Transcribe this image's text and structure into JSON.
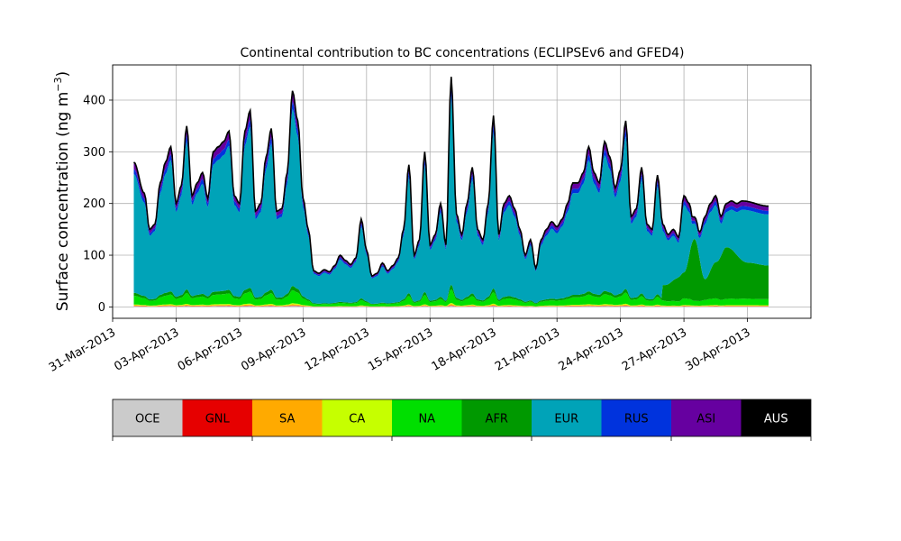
{
  "chart_data": {
    "type": "area",
    "stacked": true,
    "title": "Continental contribution to BC concentrations (ECLIPSEv6 and GFED4)",
    "ylabel_main": "Surface concentration (ng m",
    "ylabel_sup": "−3",
    "ylabel_close": ")",
    "xlabel": "",
    "x_start": "2013-04-01",
    "x_end": "2013-05-01",
    "xlim": [
      "2013-03-31",
      "2013-05-03"
    ],
    "ylim": [
      -22,
      468
    ],
    "yticks": [
      0,
      100,
      200,
      300,
      400
    ],
    "xticks": [
      "31-Mar-2013",
      "03-Apr-2013",
      "06-Apr-2013",
      "09-Apr-2013",
      "12-Apr-2013",
      "15-Apr-2013",
      "18-Apr-2013",
      "21-Apr-2013",
      "24-Apr-2013",
      "27-Apr-2013",
      "30-Apr-2013"
    ],
    "grid": true,
    "total_profile": [
      [
        "2013-04-01",
        280
      ],
      [
        "2013-04-01T12",
        220
      ],
      [
        "2013-04-01T18",
        150
      ],
      [
        "2013-04-02",
        160
      ],
      [
        "2013-04-02T06",
        240
      ],
      [
        "2013-04-02T12",
        280
      ],
      [
        "2013-04-02T18",
        310
      ],
      [
        "2013-04-03",
        200
      ],
      [
        "2013-04-03T06",
        235
      ],
      [
        "2013-04-03T12",
        350
      ],
      [
        "2013-04-03T18",
        215
      ],
      [
        "2013-04-04",
        240
      ],
      [
        "2013-04-04T06",
        260
      ],
      [
        "2013-04-04T12",
        210
      ],
      [
        "2013-04-04T18",
        300
      ],
      [
        "2013-04-05",
        310
      ],
      [
        "2013-04-05T06",
        320
      ],
      [
        "2013-04-05T12",
        340
      ],
      [
        "2013-04-05T18",
        215
      ],
      [
        "2013-04-06",
        200
      ],
      [
        "2013-04-06T06",
        340
      ],
      [
        "2013-04-06T12",
        380
      ],
      [
        "2013-04-06T18",
        185
      ],
      [
        "2013-04-07",
        200
      ],
      [
        "2013-04-07T06",
        290
      ],
      [
        "2013-04-07T12",
        345
      ],
      [
        "2013-04-07T18",
        185
      ],
      [
        "2013-04-08",
        190
      ],
      [
        "2013-04-08T06",
        260
      ],
      [
        "2013-04-08T12",
        418
      ],
      [
        "2013-04-08T18",
        360
      ],
      [
        "2013-04-09",
        210
      ],
      [
        "2013-04-09T06",
        150
      ],
      [
        "2013-04-09T12",
        70
      ],
      [
        "2013-04-09T18",
        65
      ],
      [
        "2013-04-10",
        72
      ],
      [
        "2013-04-10T06",
        68
      ],
      [
        "2013-04-10T12",
        80
      ],
      [
        "2013-04-10T18",
        100
      ],
      [
        "2013-04-11",
        90
      ],
      [
        "2013-04-11T06",
        82
      ],
      [
        "2013-04-11T12",
        95
      ],
      [
        "2013-04-11T18",
        170
      ],
      [
        "2013-04-12",
        110
      ],
      [
        "2013-04-12T06",
        60
      ],
      [
        "2013-04-12T12",
        65
      ],
      [
        "2013-04-12T18",
        85
      ],
      [
        "2013-04-13",
        70
      ],
      [
        "2013-04-13T06",
        80
      ],
      [
        "2013-04-13T12",
        95
      ],
      [
        "2013-04-13T18",
        150
      ],
      [
        "2013-04-14",
        275
      ],
      [
        "2013-04-14T06",
        100
      ],
      [
        "2013-04-14T12",
        130
      ],
      [
        "2013-04-14T18",
        300
      ],
      [
        "2013-04-15",
        120
      ],
      [
        "2013-04-15T06",
        140
      ],
      [
        "2013-04-15T12",
        200
      ],
      [
        "2013-04-15T18",
        120
      ],
      [
        "2013-04-16",
        445
      ],
      [
        "2013-04-16T06",
        180
      ],
      [
        "2013-04-16T12",
        140
      ],
      [
        "2013-04-16T18",
        200
      ],
      [
        "2013-04-17",
        270
      ],
      [
        "2013-04-17T06",
        150
      ],
      [
        "2013-04-17T12",
        130
      ],
      [
        "2013-04-17T18",
        200
      ],
      [
        "2013-04-18",
        370
      ],
      [
        "2013-04-18T06",
        140
      ],
      [
        "2013-04-18T12",
        200
      ],
      [
        "2013-04-18T18",
        215
      ],
      [
        "2013-04-19",
        190
      ],
      [
        "2013-04-19T06",
        150
      ],
      [
        "2013-04-19T12",
        100
      ],
      [
        "2013-04-19T18",
        130
      ],
      [
        "2013-04-20",
        75
      ],
      [
        "2013-04-20T06",
        130
      ],
      [
        "2013-04-20T12",
        150
      ],
      [
        "2013-04-20T18",
        165
      ],
      [
        "2013-04-21",
        155
      ],
      [
        "2013-04-21T06",
        170
      ],
      [
        "2013-04-21T12",
        200
      ],
      [
        "2013-04-21T18",
        240
      ],
      [
        "2013-04-22",
        240
      ],
      [
        "2013-04-22T06",
        260
      ],
      [
        "2013-04-22T12",
        310
      ],
      [
        "2013-04-22T18",
        260
      ],
      [
        "2013-04-23",
        240
      ],
      [
        "2013-04-23T06",
        320
      ],
      [
        "2013-04-23T12",
        290
      ],
      [
        "2013-04-23T18",
        230
      ],
      [
        "2013-04-24",
        265
      ],
      [
        "2013-04-24T06",
        360
      ],
      [
        "2013-04-24T12",
        175
      ],
      [
        "2013-04-24T18",
        190
      ],
      [
        "2013-04-25",
        270
      ],
      [
        "2013-04-25T06",
        160
      ],
      [
        "2013-04-25T12",
        150
      ],
      [
        "2013-04-25T18",
        255
      ],
      [
        "2013-04-26",
        160
      ],
      [
        "2013-04-26T06",
        140
      ],
      [
        "2013-04-26T12",
        150
      ],
      [
        "2013-04-26T18",
        135
      ],
      [
        "2013-04-27",
        215
      ],
      [
        "2013-04-27T06",
        200
      ],
      [
        "2013-04-27T12",
        150
      ],
      [
        "2013-04-27T18",
        145
      ],
      [
        "2013-04-28",
        175
      ],
      [
        "2013-04-28T06",
        200
      ],
      [
        "2013-04-28T12",
        215
      ],
      [
        "2013-04-28T18",
        175
      ],
      [
        "2013-04-29",
        200
      ],
      [
        "2013-04-29T06",
        205
      ],
      [
        "2013-04-29T12",
        200
      ],
      [
        "2013-04-29T18",
        205
      ],
      [
        "2013-05-01",
        195
      ]
    ],
    "region_shares": [
      {
        "name": "OCE",
        "color": "#cbcbcb",
        "share": 0.005
      },
      {
        "name": "GNL",
        "color": "#e60000",
        "share": 0.002
      },
      {
        "name": "SA",
        "color": "#ffaa00",
        "share": 0.005
      },
      {
        "name": "CA",
        "color": "#c6ff00",
        "share": 0.005
      },
      {
        "name": "NA",
        "color": "#00df00",
        "share": 0.06
      },
      {
        "name": "AFR",
        "color": "#009900",
        "share": 0.02
      },
      {
        "name": "EUR",
        "color": "#00a3b8",
        "share": 0.82
      },
      {
        "name": "RUS",
        "color": "#0033dd",
        "share": 0.035
      },
      {
        "name": "ASI",
        "color": "#6600a0",
        "share": 0.04
      },
      {
        "name": "AUS",
        "color": "#000000",
        "share": 0.008
      }
    ],
    "afr_bumps": [
      [
        "2013-04-26",
        30
      ],
      [
        "2013-04-27",
        50
      ],
      [
        "2013-04-27T12",
        120
      ],
      [
        "2013-04-28",
        40
      ],
      [
        "2013-04-28T12",
        70
      ],
      [
        "2013-04-29",
        100
      ],
      [
        "2013-04-30",
        70
      ],
      [
        "2013-05-01",
        65
      ]
    ],
    "legend": {
      "placement": "bottom colorbar",
      "labels": [
        "OCE",
        "GNL",
        "SA",
        "CA",
        "NA",
        "AFR",
        "EUR",
        "RUS",
        "ASI",
        "AUS"
      ],
      "text_colors": [
        "#000000",
        "#000000",
        "#000000",
        "#000000",
        "#000000",
        "#000000",
        "#000000",
        "#000000",
        "#000000",
        "#ffffff"
      ]
    }
  }
}
